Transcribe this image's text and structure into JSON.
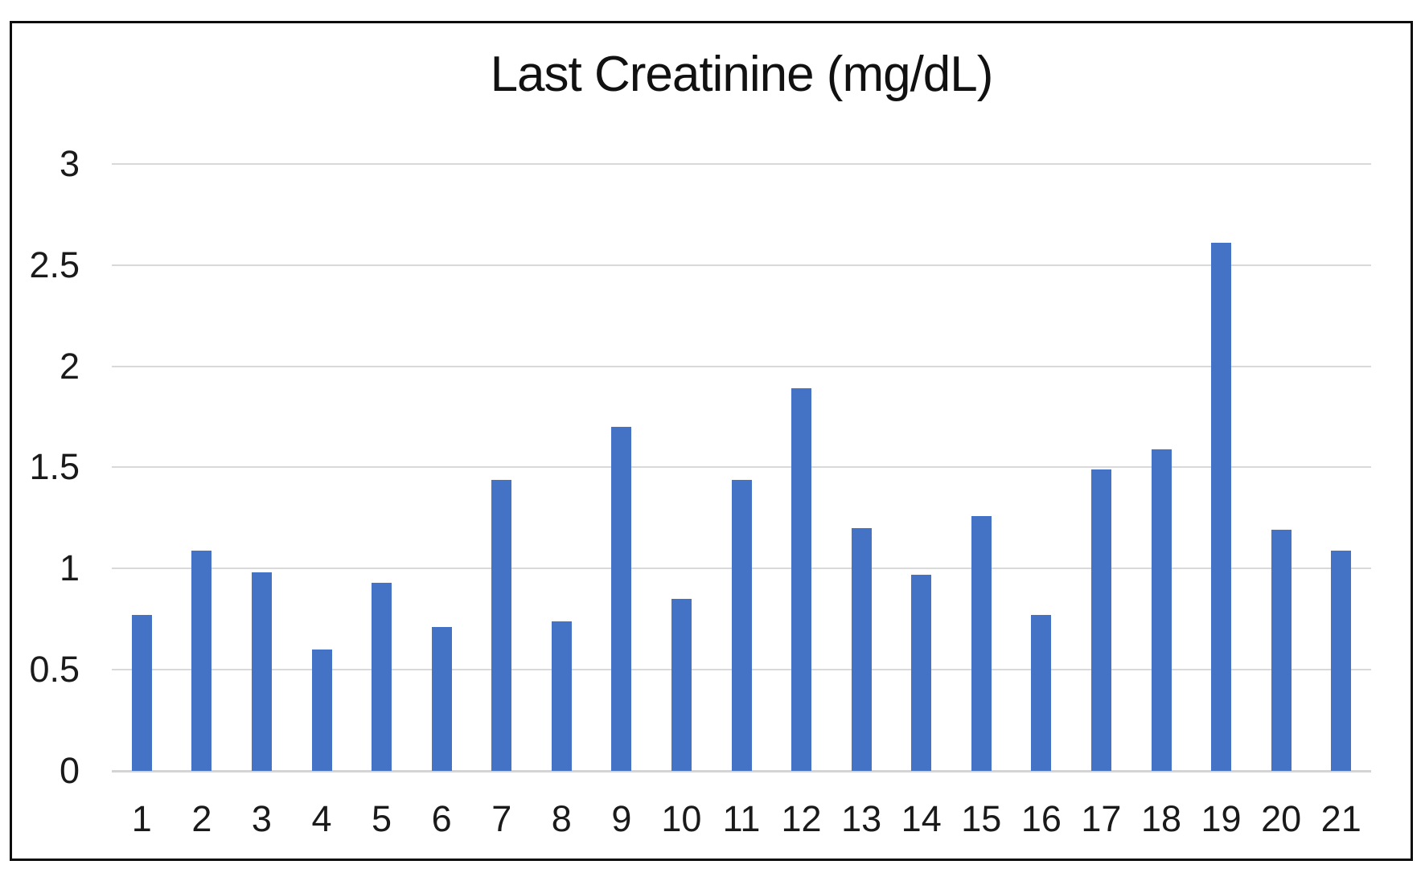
{
  "chart_data": {
    "type": "bar",
    "title": "Last Creatinine (mg/dL)",
    "categories": [
      "1",
      "2",
      "3",
      "4",
      "5",
      "6",
      "7",
      "8",
      "9",
      "10",
      "11",
      "12",
      "13",
      "14",
      "15",
      "16",
      "17",
      "18",
      "19",
      "20",
      "21"
    ],
    "values": [
      0.77,
      1.09,
      0.98,
      0.6,
      0.93,
      0.71,
      1.44,
      0.74,
      1.7,
      0.85,
      1.44,
      1.89,
      1.2,
      0.97,
      1.26,
      0.77,
      1.49,
      1.59,
      2.61,
      1.19,
      1.09
    ],
    "xlabel": "",
    "ylabel": "",
    "ylim": [
      0,
      3
    ],
    "yticks": [
      0,
      0.5,
      1,
      1.5,
      2,
      2.5,
      3
    ],
    "ytick_labels": [
      "0",
      "0.5",
      "1",
      "1.5",
      "2",
      "2.5",
      "3"
    ],
    "grid": true,
    "legend": false,
    "bar_color": "#4472C4",
    "gridline_color": "#D9D9D9",
    "baseline_color": "#D4D4D4",
    "text_color": "#1A1A1A",
    "frame_border_color": "#0D0D0D"
  }
}
